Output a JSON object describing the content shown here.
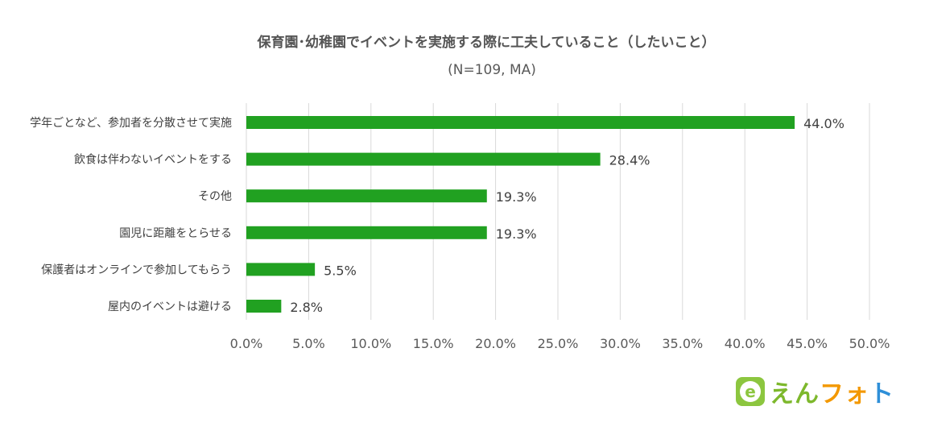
{
  "chart_data": {
    "type": "bar",
    "orientation": "horizontal",
    "title": "保育園･幼稚園でイベントを実施する際に工夫していること（したいこと）",
    "subtitle": "(N=109, MA)",
    "categories": [
      "学年ごとなど、参加者を分散させて実施",
      "飲食は伴わないイベントをする",
      "その他",
      "園児に距離をとらせる",
      "保護者はオンラインで参加してもらう",
      "屋内のイベントは避ける"
    ],
    "values": [
      44.0,
      28.4,
      19.3,
      19.3,
      5.5,
      2.8
    ],
    "data_labels": [
      "44.0%",
      "28.4%",
      "19.3%",
      "19.3%",
      "5.5%",
      "2.8%"
    ],
    "xlim": [
      0,
      50
    ],
    "x_ticks": [
      0,
      5,
      10,
      15,
      20,
      25,
      30,
      35,
      40,
      45,
      50
    ],
    "x_tick_labels": [
      "0.0%",
      "5.0%",
      "10.0%",
      "15.0%",
      "20.0%",
      "25.0%",
      "30.0%",
      "35.0%",
      "40.0%",
      "45.0%",
      "50.0%"
    ],
    "grid": true,
    "legend": "none",
    "bar_color": "#21a121",
    "grid_color": "#d9d9d9"
  },
  "logo": {
    "badge_letter": "e",
    "parts": [
      {
        "text": "えん",
        "color": "#7db82c"
      },
      {
        "text": "フォ",
        "color": "#f39800"
      },
      {
        "text": "ト",
        "color": "#2e8fd8"
      }
    ],
    "badge_color": "#8cc63f"
  }
}
